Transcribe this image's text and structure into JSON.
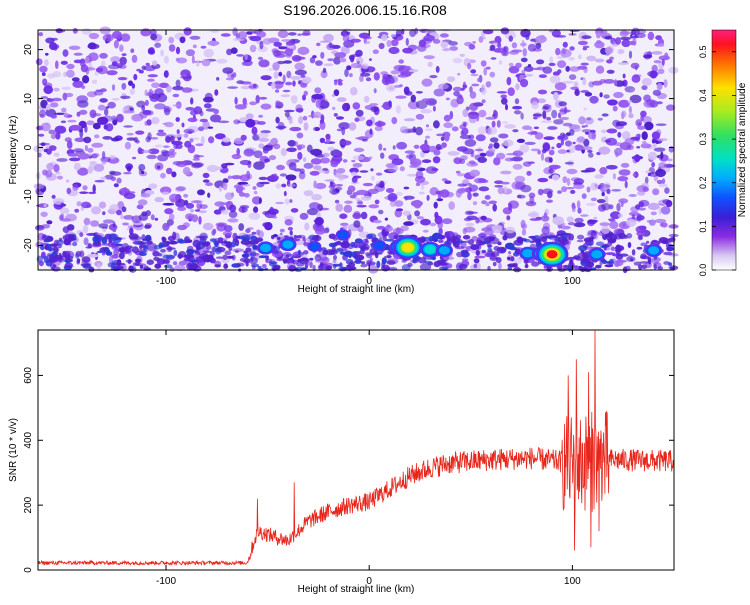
{
  "title": "S196.2026.006.15.16.R08",
  "chart_data": [
    {
      "type": "heatmap",
      "xlabel": "Height of straight line (km)",
      "ylabel": "Frequency (Hz)",
      "xlim": [
        -163,
        150
      ],
      "ylim": [
        -25,
        24
      ],
      "xticks": [
        -100,
        0,
        100
      ],
      "yticks": [
        -20,
        -10,
        0,
        10,
        20
      ],
      "colorbar": {
        "label": "Normalized spectral amplitude",
        "range": [
          0,
          0.55
        ],
        "ticks": [
          "0.0",
          "0.1",
          "0.2",
          "0.3",
          "0.4",
          "0.5"
        ]
      },
      "hotspots": [
        {
          "x": -51,
          "y": -20.5,
          "amp": 0.18
        },
        {
          "x": -40,
          "y": -19.8,
          "amp": 0.15
        },
        {
          "x": -27,
          "y": -20.2,
          "amp": 0.12
        },
        {
          "x": -13,
          "y": -17.8,
          "amp": 0.14
        },
        {
          "x": 5,
          "y": -20.0,
          "amp": 0.12
        },
        {
          "x": 15,
          "y": -20.3,
          "amp": 0.25
        },
        {
          "x": 19,
          "y": -20.4,
          "amp": 0.42
        },
        {
          "x": 30,
          "y": -20.8,
          "amp": 0.22
        },
        {
          "x": 37,
          "y": -21.0,
          "amp": 0.16
        },
        {
          "x": 78,
          "y": -21.6,
          "amp": 0.17
        },
        {
          "x": 85,
          "y": -21.7,
          "amp": 0.25
        },
        {
          "x": 90,
          "y": -21.8,
          "amp": 0.48
        },
        {
          "x": 112,
          "y": -21.8,
          "amp": 0.15
        },
        {
          "x": 140,
          "y": -21.0,
          "amp": 0.15
        }
      ]
    },
    {
      "type": "line",
      "xlabel": "Height of straight line (km)",
      "ylabel": "SNR (10 * v/v)",
      "xlim": [
        -163,
        150
      ],
      "ylim": [
        0,
        740
      ],
      "xticks": [
        -100,
        0,
        100
      ],
      "yticks": [
        0,
        200,
        400,
        600
      ],
      "series": [
        {
          "color": "#e8251a",
          "envelope": [
            {
              "x": -163,
              "y": 22
            },
            {
              "x": -60,
              "y": 22
            },
            {
              "x": -55,
              "y": 120
            },
            {
              "x": -40,
              "y": 90
            },
            {
              "x": -30,
              "y": 150
            },
            {
              "x": -20,
              "y": 180
            },
            {
              "x": -10,
              "y": 200
            },
            {
              "x": 0,
              "y": 210
            },
            {
              "x": 10,
              "y": 250
            },
            {
              "x": 20,
              "y": 290
            },
            {
              "x": 30,
              "y": 315
            },
            {
              "x": 40,
              "y": 330
            },
            {
              "x": 60,
              "y": 340
            },
            {
              "x": 80,
              "y": 345
            },
            {
              "x": 100,
              "y": 330
            },
            {
              "x": 120,
              "y": 340
            },
            {
              "x": 150,
              "y": 335
            }
          ],
          "noise_amplitude": 30,
          "peaks": [
            {
              "x": -55,
              "y": 220
            },
            {
              "x": -37,
              "y": 270
            },
            {
              "x": 98,
              "y": 600
            },
            {
              "x": 102,
              "y": 650
            },
            {
              "x": 108,
              "y": 610
            },
            {
              "x": 111,
              "y": 738
            },
            {
              "x": 114,
              "y": 430
            }
          ],
          "dips": [
            {
              "x": 101,
              "y": 60
            },
            {
              "x": 109,
              "y": 70
            },
            {
              "x": 113,
              "y": 120
            }
          ]
        }
      ]
    }
  ]
}
